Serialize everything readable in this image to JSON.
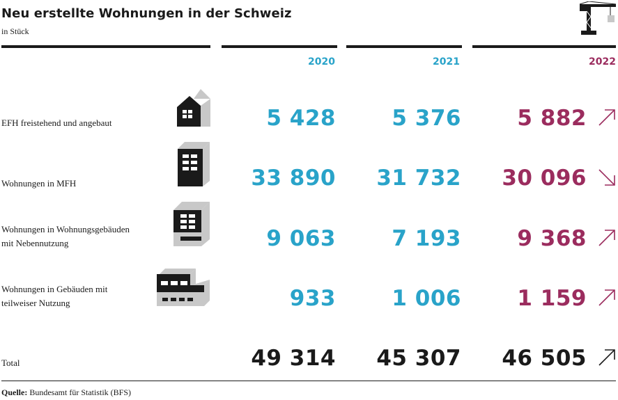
{
  "header": {
    "title": "Neu erstellte Wohnungen in der Schweiz",
    "subtitle": "in Stück",
    "icon": "crane-icon"
  },
  "years": [
    "2020",
    "2021",
    "2022"
  ],
  "rows": [
    {
      "label_lines": [
        "EFH freistehend und angebaut"
      ],
      "values": [
        "5 428",
        "5 376",
        "5 882"
      ],
      "trend": "up",
      "icon": "house-icon"
    },
    {
      "label_lines": [
        "Wohnungen in MFH"
      ],
      "values": [
        "33 890",
        "31 732",
        "30 096"
      ],
      "trend": "down",
      "icon": "apartment-building-icon"
    },
    {
      "label_lines": [
        "Wohnungen in Wohnungsgebäuden",
        "mit Nebennutzung"
      ],
      "values": [
        "9 063",
        "7 193",
        "9 368"
      ],
      "trend": "up",
      "icon": "mixed-use-building-icon"
    },
    {
      "label_lines": [
        "Wohnungen in Gebäuden mit",
        "teilweiser Nutzung"
      ],
      "values": [
        "933",
        "1 006",
        "1 159"
      ],
      "trend": "up",
      "icon": "partial-use-building-icon"
    }
  ],
  "total": {
    "label": "Total",
    "values": [
      "49 314",
      "45 307",
      "46 505"
    ],
    "trend": "up"
  },
  "source": {
    "prefix": "Quelle:",
    "text": " Bundesamt für Statistik (BFS)"
  },
  "colors": {
    "year_2020_2021": "#29a3c9",
    "year_2022": "#9b2c5e",
    "text": "#1a1a1a",
    "icon_light": "#c8c8c8"
  }
}
